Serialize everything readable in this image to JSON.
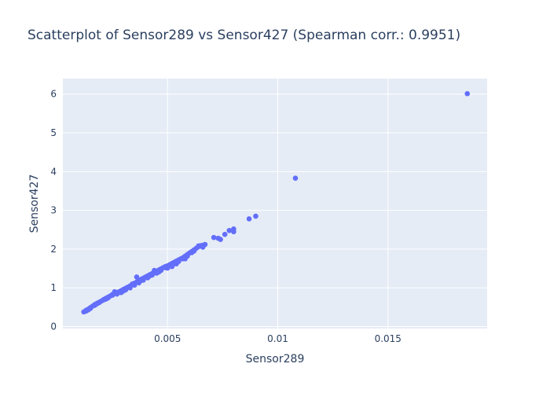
{
  "chart_data": {
    "type": "scatter",
    "title": "Scatterplot of Sensor289 vs Sensor427 (Spearman corr.: 0.9951)",
    "xlabel": "Sensor289",
    "ylabel": "Sensor427",
    "xlim": [
      0.00025,
      0.0195
    ],
    "ylim": [
      -0.05,
      6.4
    ],
    "xticks": [
      {
        "value": 0.005,
        "label": "0.005"
      },
      {
        "value": 0.01,
        "label": "0.01"
      },
      {
        "value": 0.015,
        "label": "0.015"
      }
    ],
    "yticks": [
      {
        "value": 0,
        "label": "0"
      },
      {
        "value": 1,
        "label": "1"
      },
      {
        "value": 2,
        "label": "2"
      },
      {
        "value": 3,
        "label": "3"
      },
      {
        "value": 4,
        "label": "4"
      },
      {
        "value": 5,
        "label": "5"
      },
      {
        "value": 6,
        "label": "6"
      }
    ],
    "grid": true,
    "marker_color": "#636efa",
    "plot_bg": "#e5ecf6",
    "x": [
      0.0012,
      0.0013,
      0.0014,
      0.0015,
      0.0016,
      0.0017,
      0.0018,
      0.0019,
      0.002,
      0.0021,
      0.0022,
      0.0023,
      0.0024,
      0.0025,
      0.0026,
      0.0027,
      0.0028,
      0.0029,
      0.003,
      0.0031,
      0.0032,
      0.0033,
      0.0034,
      0.0035,
      0.0036,
      0.0037,
      0.0038,
      0.0039,
      0.004,
      0.0041,
      0.0042,
      0.0043,
      0.0044,
      0.0045,
      0.0046,
      0.0047,
      0.0048,
      0.0049,
      0.005,
      0.0051,
      0.0052,
      0.0053,
      0.0054,
      0.0055,
      0.0056,
      0.0057,
      0.0058,
      0.0059,
      0.006,
      0.0061,
      0.0062,
      0.0063,
      0.0064,
      0.0065,
      0.0066,
      0.0067,
      0.0013,
      0.0015,
      0.0017,
      0.0019,
      0.0021,
      0.0023,
      0.0025,
      0.0027,
      0.0029,
      0.0031,
      0.0033,
      0.0035,
      0.0037,
      0.0039,
      0.0041,
      0.0043,
      0.0045,
      0.0047,
      0.0049,
      0.0051,
      0.0053,
      0.0055,
      0.0057,
      0.0059,
      0.0061,
      0.0014,
      0.0018,
      0.0022,
      0.0026,
      0.003,
      0.0034,
      0.0038,
      0.0042,
      0.0046,
      0.005,
      0.0054,
      0.0058,
      0.0062,
      0.0066,
      0.0028,
      0.0036,
      0.0044,
      0.0052,
      0.0064,
      0.0071,
      0.0073,
      0.0074,
      0.0076,
      0.0078,
      0.008,
      0.008,
      0.0087,
      0.009,
      0.0108,
      0.0186
    ],
    "y": [
      0.38,
      0.42,
      0.45,
      0.49,
      0.53,
      0.57,
      0.6,
      0.63,
      0.66,
      0.69,
      0.73,
      0.76,
      0.79,
      0.83,
      0.86,
      0.88,
      0.9,
      0.93,
      0.96,
      0.99,
      1.02,
      1.05,
      1.08,
      1.12,
      1.15,
      1.18,
      1.22,
      1.25,
      1.28,
      1.31,
      1.34,
      1.37,
      1.4,
      1.43,
      1.46,
      1.49,
      1.52,
      1.55,
      1.57,
      1.6,
      1.63,
      1.66,
      1.69,
      1.72,
      1.75,
      1.78,
      1.82,
      1.86,
      1.9,
      1.94,
      1.98,
      2.02,
      2.06,
      2.09,
      2.1,
      2.12,
      0.4,
      0.47,
      0.55,
      0.62,
      0.7,
      0.74,
      0.81,
      0.84,
      0.88,
      0.95,
      1.0,
      1.07,
      1.13,
      1.2,
      1.26,
      1.33,
      1.38,
      1.45,
      1.52,
      1.58,
      1.62,
      1.68,
      1.75,
      1.82,
      1.91,
      0.43,
      0.59,
      0.71,
      0.9,
      0.92,
      1.1,
      1.19,
      1.31,
      1.41,
      1.51,
      1.62,
      1.75,
      1.95,
      2.05,
      0.88,
      1.28,
      1.45,
      1.55,
      2.08,
      2.3,
      2.28,
      2.25,
      2.38,
      2.48,
      2.45,
      2.52,
      2.78,
      2.85,
      3.83,
      6.01
    ]
  }
}
